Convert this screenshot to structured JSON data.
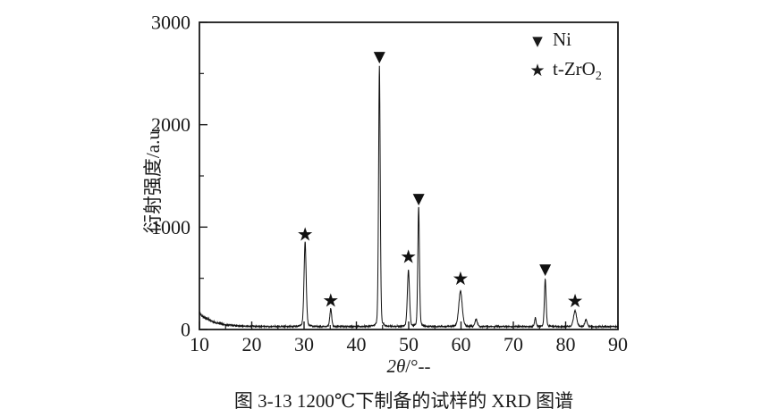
{
  "figure": {
    "caption": "图 3-13 1200℃下制备的试样的 XRD 图谱"
  },
  "chart_data": {
    "type": "line",
    "title": "",
    "xlabel_italic": "2θ",
    "xlabel_rest": "/°--",
    "ylabel": "衍射强度/a.u.",
    "xlim": [
      10,
      90
    ],
    "ylim": [
      0,
      3000
    ],
    "x_major_ticks": [
      10,
      20,
      30,
      40,
      50,
      60,
      70,
      80,
      90
    ],
    "x_minor_tick_step": 5,
    "y_major_ticks": [
      0,
      1000,
      2000,
      3000
    ],
    "y_minor_tick_step": 500,
    "grid": false,
    "series_name": "XRD pattern of sample prepared at 1200°C",
    "legend": {
      "position": "top-right-inside",
      "entries": [
        {
          "glyph": "▼",
          "marker": "triangle",
          "label": "Ni",
          "label_sub": ""
        },
        {
          "glyph": "★",
          "marker": "star",
          "label": "t-ZrO",
          "label_sub": "2"
        }
      ]
    },
    "background": {
      "base": 28,
      "amplitude": 132,
      "decay": 2.6,
      "noise_base": 6,
      "noise_scale": 0.12
    },
    "peaks": [
      {
        "two_theta": 30.2,
        "intensity": 830,
        "width": 0.3,
        "phase": "t-ZrO2",
        "marker": "star",
        "marker_intensity": 930
      },
      {
        "two_theta": 35.1,
        "intensity": 175,
        "width": 0.26,
        "phase": "t-ZrO2",
        "marker": "star",
        "marker_intensity": 285
      },
      {
        "two_theta": 44.4,
        "intensity": 2540,
        "width": 0.23,
        "phase": "Ni",
        "marker": "triangle",
        "marker_intensity": 2665
      },
      {
        "two_theta": 49.95,
        "intensity": 550,
        "width": 0.3,
        "phase": "t-ZrO2",
        "marker": "star",
        "marker_intensity": 710
      },
      {
        "two_theta": 51.9,
        "intensity": 1170,
        "width": 0.23,
        "phase": "Ni",
        "marker": "triangle",
        "marker_intensity": 1280
      },
      {
        "two_theta": 59.9,
        "intensity": 350,
        "width": 0.48,
        "phase": "t-ZrO2",
        "marker": "star",
        "marker_intensity": 495
      },
      {
        "two_theta": 76.1,
        "intensity": 465,
        "width": 0.24,
        "phase": "Ni",
        "marker": "triangle",
        "marker_intensity": 590
      },
      {
        "two_theta": 81.8,
        "intensity": 155,
        "width": 0.42,
        "phase": "t-ZrO2",
        "marker": "star",
        "marker_intensity": 280
      }
    ],
    "minor_features": [
      {
        "two_theta": 62.9,
        "intensity": 70,
        "width": 0.32
      },
      {
        "two_theta": 74.2,
        "intensity": 85,
        "width": 0.22
      },
      {
        "two_theta": 83.9,
        "intensity": 65,
        "width": 0.32
      }
    ],
    "colors": {
      "trace": "#111111",
      "marker": "#111111",
      "axis": "#1a1a1a"
    }
  }
}
